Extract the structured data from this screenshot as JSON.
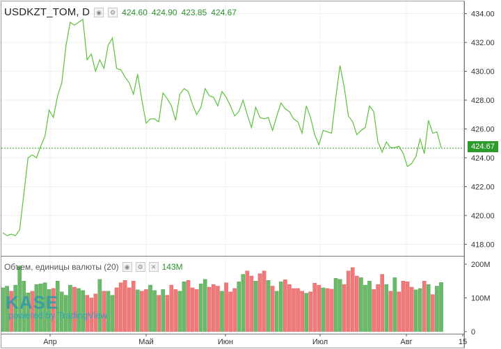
{
  "legend": {
    "symbol": "USDKZT_TOM, D",
    "open": "424.60",
    "high": "424.90",
    "low": "423.85",
    "close": "424.67"
  },
  "volume_legend": {
    "label": "Объем, единицы валюты (20)",
    "value": "143M"
  },
  "last_price": "424.67",
  "watermark": {
    "brand": "KASE",
    "powered": "powered by TradingView"
  },
  "colors": {
    "line": "#5cc13a",
    "up": "#6aba6a",
    "down": "#f07a7a",
    "last": "#2e9b2e"
  },
  "chart_data": [
    {
      "type": "line",
      "title": "",
      "price_ticks": [
        "434.00",
        "432.00",
        "430.00",
        "428.00",
        "426.00",
        "424.00",
        "422.00",
        "420.00",
        "418.00"
      ],
      "x_ticks": [
        "Апр",
        "Май",
        "Июн",
        "Июл",
        "Авг",
        "15"
      ],
      "ylim": [
        417.2,
        434.8
      ],
      "values": [
        418.8,
        418.6,
        418.7,
        418.6,
        419.0,
        421.5,
        424.0,
        424.2,
        424.0,
        424.8,
        425.5,
        427.3,
        426.8,
        428.3,
        429.2,
        431.8,
        433.4,
        433.2,
        433.4,
        433.6,
        430.8,
        431.2,
        430.0,
        430.8,
        430.2,
        431.8,
        432.3,
        430.2,
        430.1,
        429.6,
        429.2,
        428.4,
        429.8,
        428.0,
        426.4,
        426.7,
        426.7,
        426.5,
        428.5,
        428.1,
        427.6,
        426.6,
        428.4,
        428.8,
        428.6,
        427.7,
        427.0,
        427.5,
        428.8,
        428.3,
        428.2,
        427.6,
        428.6,
        428.2,
        427.6,
        426.9,
        427.2,
        428.0,
        427.0,
        426.1,
        427.5,
        426.8,
        426.7,
        426.8,
        425.9,
        426.9,
        427.8,
        427.4,
        427.2,
        426.7,
        426.5,
        425.7,
        427.6,
        426.8,
        425.6,
        424.9,
        425.9,
        425.8,
        425.7,
        428.2,
        430.4,
        428.9,
        426.9,
        426.5,
        425.6,
        425.9,
        426.1,
        427.6,
        427.2,
        425.1,
        424.4,
        425.1,
        424.7,
        424.7,
        424.8,
        424.3,
        423.4,
        423.6,
        424.1,
        425.3,
        424.3,
        426.6,
        425.7,
        425.8,
        424.7
      ],
      "volume": {
        "ticks": [
          "200M",
          "100M",
          "0"
        ],
        "ylim": [
          0,
          200
        ],
        "values": [
          130,
          135,
          120,
          138,
          195,
          150,
          115,
          120,
          140,
          142,
          145,
          125,
          128,
          150,
          118,
          108,
          138,
          132,
          128,
          122,
          108,
          100,
          112,
          155,
          120,
          120,
          108,
          130,
          145,
          152,
          130,
          150,
          124,
          120,
          125,
          138,
          122,
          108,
          125,
          108,
          138,
          125,
          120,
          148,
          152,
          130,
          125,
          142,
          155,
          132,
          140,
          135,
          120,
          145,
          118,
          128,
          148,
          170,
          180,
          165,
          150,
          172,
          180,
          152,
          135,
          120,
          148,
          154,
          140,
          128,
          128,
          120,
          114,
          118,
          144,
          138,
          130,
          128,
          126,
          158,
          155,
          140,
          180,
          190,
          165,
          160,
          138,
          150,
          125,
          140,
          170,
          140,
          120,
          160,
          118,
          150,
          148,
          132,
          124,
          128,
          150,
          140,
          110,
          135,
          146
        ],
        "up": [
          true,
          true,
          false,
          true,
          true,
          true,
          true,
          false,
          true,
          true,
          true,
          true,
          false,
          true,
          true,
          true,
          true,
          false,
          true,
          true,
          false,
          false,
          false,
          true,
          false,
          true,
          true,
          false,
          false,
          false,
          false,
          false,
          true,
          false,
          false,
          true,
          true,
          false,
          true,
          false,
          false,
          false,
          true,
          true,
          false,
          false,
          false,
          true,
          true,
          false,
          false,
          false,
          true,
          false,
          false,
          false,
          true,
          true,
          false,
          false,
          true,
          false,
          false,
          true,
          false,
          true,
          true,
          false,
          false,
          false,
          false,
          false,
          true,
          false,
          false,
          false,
          true,
          false,
          false,
          true,
          true,
          false,
          false,
          false,
          false,
          true,
          true,
          true,
          false,
          false,
          false,
          true,
          false,
          true,
          false,
          false,
          false,
          false,
          true,
          true,
          false,
          true,
          false,
          true,
          true
        ]
      }
    }
  ]
}
